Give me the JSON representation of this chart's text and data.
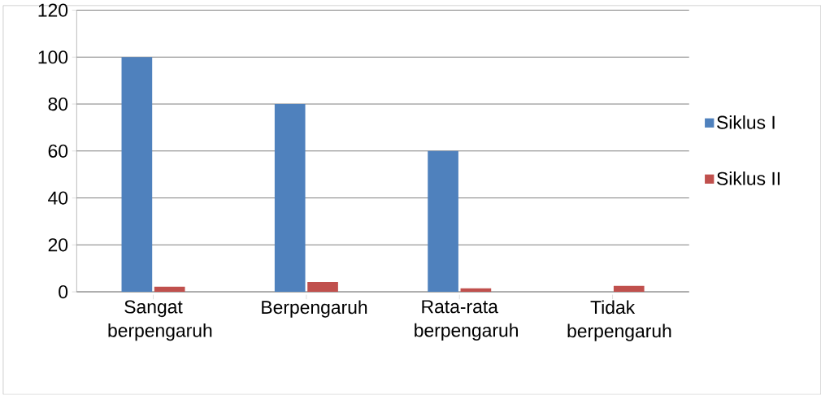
{
  "chart_data": {
    "type": "bar",
    "categories": [
      "Sangat berpengaruh",
      "Berpengaruh",
      "Rata-rata berpengaruh",
      "Tidak berpengaruh"
    ],
    "series": [
      {
        "name": "Siklus I",
        "color": "#4f81bd",
        "values": [
          100,
          80,
          60,
          null
        ]
      },
      {
        "name": "Siklus II",
        "color": "#c0504d",
        "values": [
          2.2,
          4.2,
          1.5,
          2.5
        ]
      }
    ],
    "ylim": [
      0,
      120
    ],
    "yticks": [
      0,
      20,
      40,
      60,
      80,
      100,
      120
    ],
    "grid": "y",
    "legend": "right"
  }
}
